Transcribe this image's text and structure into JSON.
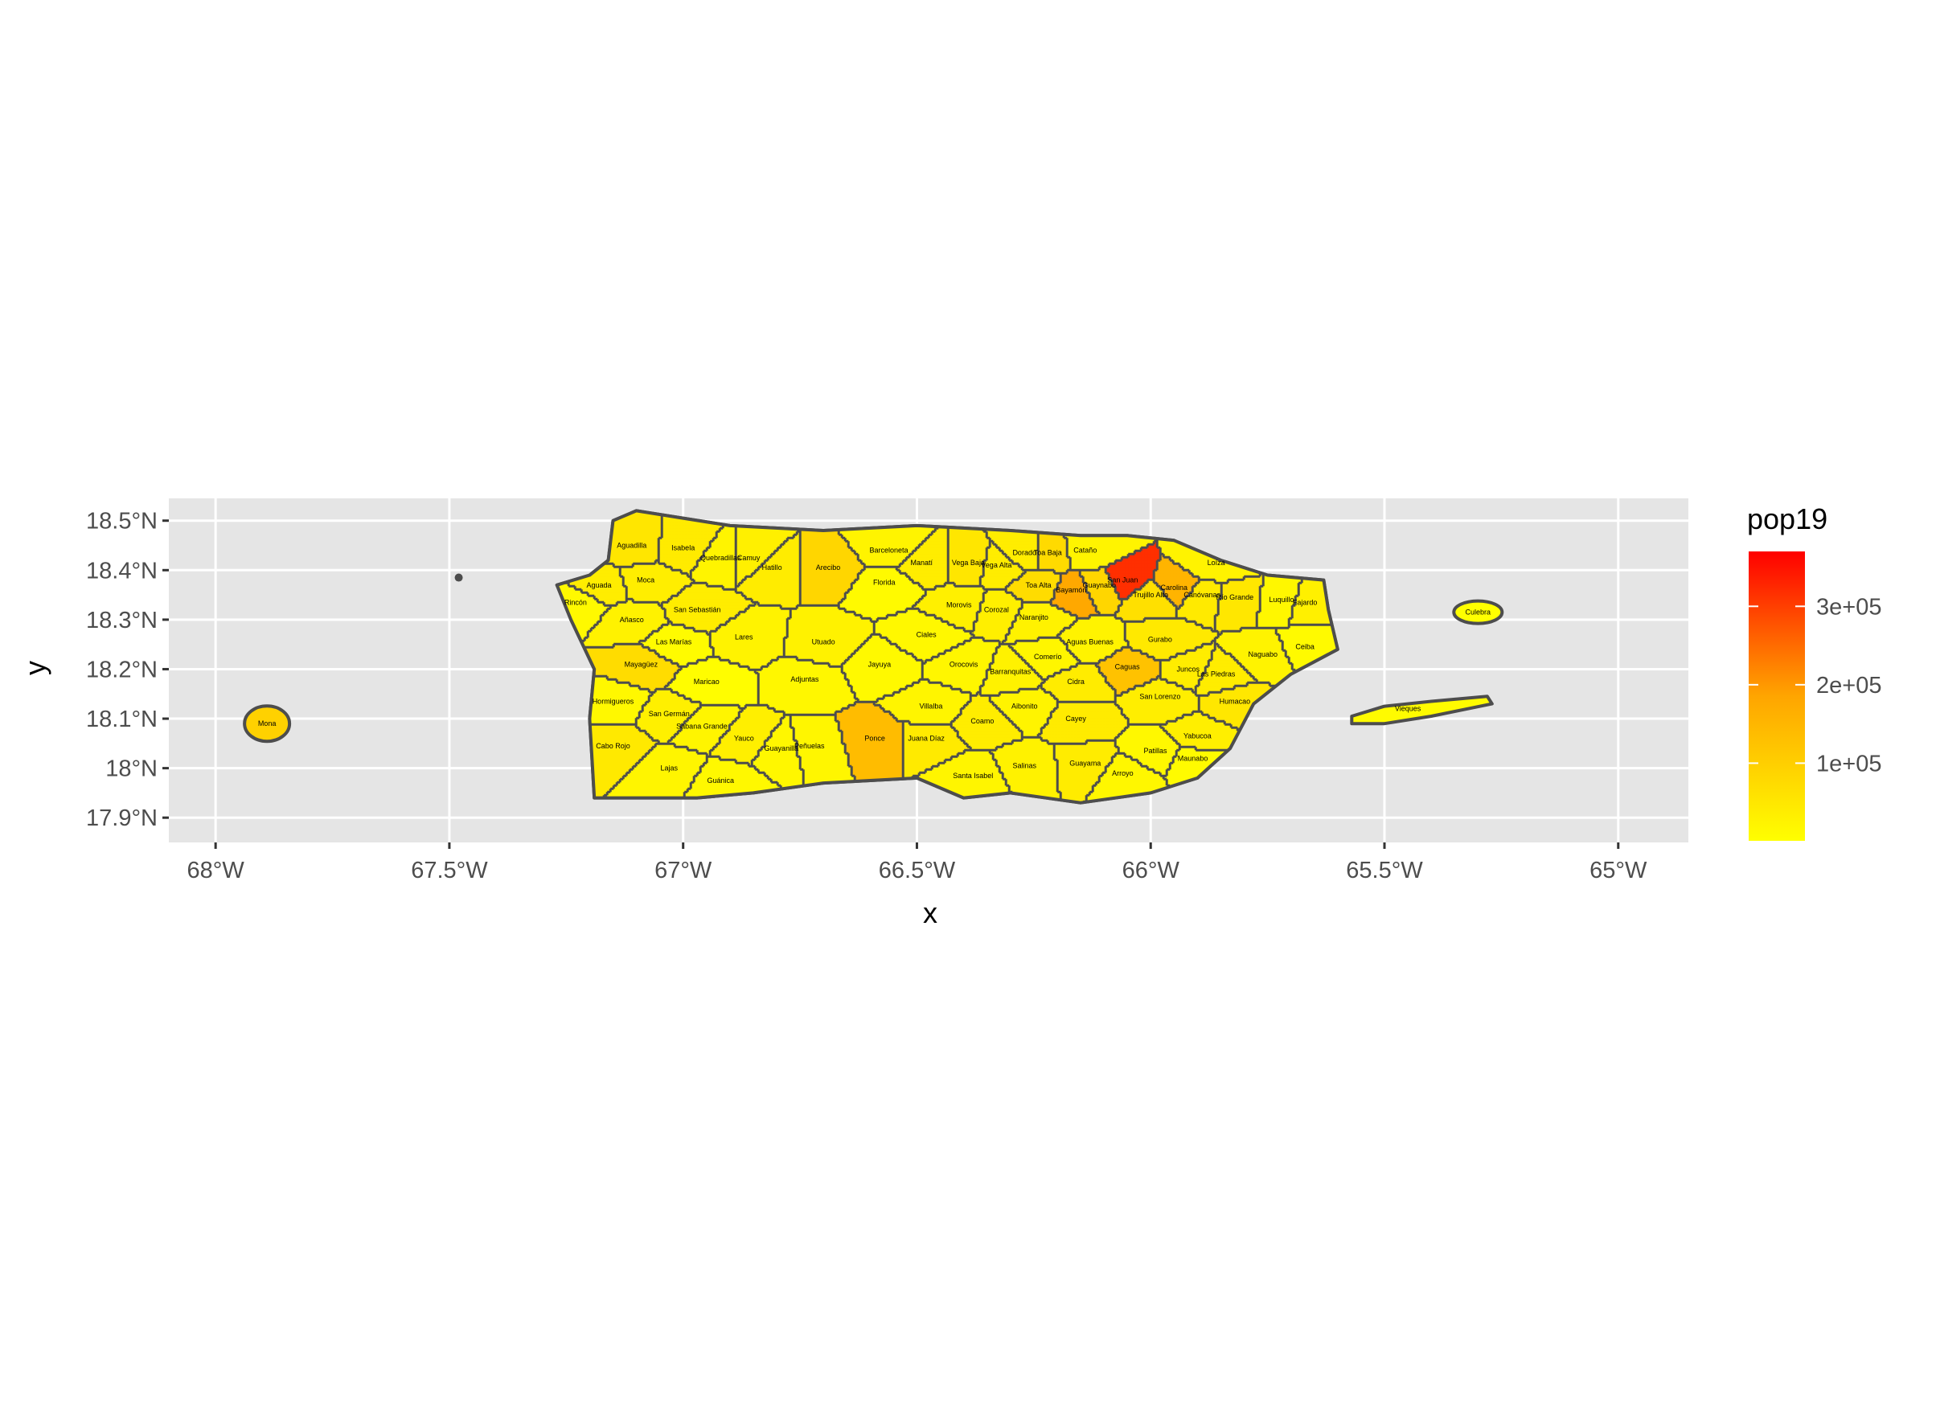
{
  "chart_data": {
    "type": "choropleth",
    "xlabel": "x",
    "ylabel": "y",
    "xlim": [
      -68.1,
      -64.85
    ],
    "ylim": [
      17.85,
      18.545
    ],
    "x_ticks": [
      {
        "value": -68,
        "label": "68°W"
      },
      {
        "value": -67.5,
        "label": "67.5°W"
      },
      {
        "value": -67,
        "label": "67°W"
      },
      {
        "value": -66.5,
        "label": "66.5°W"
      },
      {
        "value": -66,
        "label": "66°W"
      },
      {
        "value": -65.5,
        "label": "65.5°W"
      },
      {
        "value": -65,
        "label": "65°W"
      }
    ],
    "y_ticks": [
      {
        "value": 18.5,
        "label": "18.5°N"
      },
      {
        "value": 18.4,
        "label": "18.4°N"
      },
      {
        "value": 18.3,
        "label": "18.3°N"
      },
      {
        "value": 18.2,
        "label": "18.2°N"
      },
      {
        "value": 18.1,
        "label": "18.1°N"
      },
      {
        "value": 18.0,
        "label": "18°N"
      },
      {
        "value": 17.9,
        "label": "17.9°N"
      }
    ],
    "legend": {
      "title": "pop19",
      "placement": "right",
      "low_color": "#FFFF00",
      "high_color": "#FF0000",
      "min": 1000,
      "max": 370000,
      "ticks": [
        {
          "value": 100000,
          "label": "1e+05"
        },
        {
          "value": 200000,
          "label": "2e+05"
        },
        {
          "value": 300000,
          "label": "3e+05"
        }
      ]
    },
    "colors": {
      "panel_background": "#e5e5e5",
      "grid": "#ffffff",
      "border": "#4d4d4d"
    },
    "municipalities": [
      {
        "name": "Aguadilla",
        "lon": -67.11,
        "lat": 18.45,
        "pop19": 53000
      },
      {
        "name": "Isabela",
        "lon": -67.0,
        "lat": 18.445,
        "pop19": 42000
      },
      {
        "name": "Quebradillas",
        "lon": -66.92,
        "lat": 18.425,
        "pop19": 23000
      },
      {
        "name": "Camuy",
        "lon": -66.86,
        "lat": 18.425,
        "pop19": 31000
      },
      {
        "name": "Hatillo",
        "lon": -66.81,
        "lat": 18.405,
        "pop19": 40000
      },
      {
        "name": "Arecibo",
        "lon": -66.69,
        "lat": 18.405,
        "pop19": 86000
      },
      {
        "name": "Barceloneta",
        "lon": -66.56,
        "lat": 18.44,
        "pop19": 23000
      },
      {
        "name": "Florida",
        "lon": -66.57,
        "lat": 18.375,
        "pop19": 11000
      },
      {
        "name": "Manatí",
        "lon": -66.49,
        "lat": 18.415,
        "pop19": 38000
      },
      {
        "name": "Vega Baja",
        "lon": -66.39,
        "lat": 18.415,
        "pop19": 52000
      },
      {
        "name": "Vega Alta",
        "lon": -66.33,
        "lat": 18.41,
        "pop19": 37000
      },
      {
        "name": "Dorado",
        "lon": -66.27,
        "lat": 18.435,
        "pop19": 37000
      },
      {
        "name": "Toa Baja",
        "lon": -66.22,
        "lat": 18.435,
        "pop19": 77000
      },
      {
        "name": "Cataño",
        "lon": -66.14,
        "lat": 18.44,
        "pop19": 24000
      },
      {
        "name": "San Juan",
        "lon": -66.06,
        "lat": 18.38,
        "pop19": 318000
      },
      {
        "name": "Carolina",
        "lon": -65.95,
        "lat": 18.365,
        "pop19": 154000
      },
      {
        "name": "Loíza",
        "lon": -65.86,
        "lat": 18.415,
        "pop19": 25000
      },
      {
        "name": "Río Grande",
        "lon": -65.82,
        "lat": 18.345,
        "pop19": 50000
      },
      {
        "name": "Luquillo",
        "lon": -65.72,
        "lat": 18.34,
        "pop19": 18000
      },
      {
        "name": "Fajardo",
        "lon": -65.67,
        "lat": 18.335,
        "pop19": 31000
      },
      {
        "name": "Culebra",
        "lon": -65.3,
        "lat": 18.315,
        "pop19": 1700
      },
      {
        "name": "Vieques",
        "lon": -65.45,
        "lat": 18.12,
        "pop19": 8400
      },
      {
        "name": "Aguada",
        "lon": -67.18,
        "lat": 18.37,
        "pop19": 37000
      },
      {
        "name": "Rincón",
        "lon": -67.23,
        "lat": 18.335,
        "pop19": 14000
      },
      {
        "name": "Moca",
        "lon": -67.08,
        "lat": 18.38,
        "pop19": 36000
      },
      {
        "name": "San Sebastián",
        "lon": -66.97,
        "lat": 18.32,
        "pop19": 37000
      },
      {
        "name": "Añasco",
        "lon": -67.11,
        "lat": 18.3,
        "pop19": 27000
      },
      {
        "name": "Las Marías",
        "lon": -67.02,
        "lat": 18.255,
        "pop19": 8500
      },
      {
        "name": "Lares",
        "lon": -66.87,
        "lat": 18.265,
        "pop19": 25000
      },
      {
        "name": "Utuado",
        "lon": -66.7,
        "lat": 18.255,
        "pop19": 28000
      },
      {
        "name": "Ciales",
        "lon": -66.48,
        "lat": 18.27,
        "pop19": 16000
      },
      {
        "name": "Morovis",
        "lon": -66.41,
        "lat": 18.33,
        "pop19": 31000
      },
      {
        "name": "Corozal",
        "lon": -66.33,
        "lat": 18.32,
        "pop19": 33000
      },
      {
        "name": "Toa Alta",
        "lon": -66.24,
        "lat": 18.37,
        "pop19": 73000
      },
      {
        "name": "Naranjito",
        "lon": -66.25,
        "lat": 18.305,
        "pop19": 28000
      },
      {
        "name": "Bayamón",
        "lon": -66.17,
        "lat": 18.36,
        "pop19": 180000
      },
      {
        "name": "Guaynabo",
        "lon": -66.11,
        "lat": 18.37,
        "pop19": 86000
      },
      {
        "name": "Trujillo Alto",
        "lon": -66.0,
        "lat": 18.35,
        "pop19": 65000
      },
      {
        "name": "Canóvanas",
        "lon": -65.89,
        "lat": 18.35,
        "pop19": 44000
      },
      {
        "name": "Mayagüez",
        "lon": -67.09,
        "lat": 18.21,
        "pop19": 72000
      },
      {
        "name": "Maricao",
        "lon": -66.95,
        "lat": 18.175,
        "pop19": 5400
      },
      {
        "name": "Adjuntas",
        "lon": -66.74,
        "lat": 18.18,
        "pop19": 17000
      },
      {
        "name": "Jayuya",
        "lon": -66.58,
        "lat": 18.21,
        "pop19": 14000
      },
      {
        "name": "Orocovis",
        "lon": -66.4,
        "lat": 18.21,
        "pop19": 20000
      },
      {
        "name": "Barranquitas",
        "lon": -66.3,
        "lat": 18.195,
        "pop19": 28000
      },
      {
        "name": "Comerío",
        "lon": -66.22,
        "lat": 18.225,
        "pop19": 19000
      },
      {
        "name": "Aguas Buenas",
        "lon": -66.13,
        "lat": 18.255,
        "pop19": 25000
      },
      {
        "name": "Cidra",
        "lon": -66.16,
        "lat": 18.175,
        "pop19": 39000
      },
      {
        "name": "Caguas",
        "lon": -66.05,
        "lat": 18.205,
        "pop19": 127000
      },
      {
        "name": "Gurabo",
        "lon": -65.98,
        "lat": 18.26,
        "pop19": 47000
      },
      {
        "name": "Juncos",
        "lon": -65.92,
        "lat": 18.2,
        "pop19": 38000
      },
      {
        "name": "Las Piedras",
        "lon": -65.86,
        "lat": 18.19,
        "pop19": 37000
      },
      {
        "name": "Naguabo",
        "lon": -65.76,
        "lat": 18.23,
        "pop19": 25000
      },
      {
        "name": "Ceiba",
        "lon": -65.67,
        "lat": 18.245,
        "pop19": 11000
      },
      {
        "name": "Humacao",
        "lon": -65.82,
        "lat": 18.135,
        "pop19": 51000
      },
      {
        "name": "San Lorenzo",
        "lon": -65.98,
        "lat": 18.145,
        "pop19": 36000
      },
      {
        "name": "Hormigueros",
        "lon": -67.15,
        "lat": 18.135,
        "pop19": 16000
      },
      {
        "name": "San Germán",
        "lon": -67.03,
        "lat": 18.11,
        "pop19": 31000
      },
      {
        "name": "Sabana Grande",
        "lon": -66.96,
        "lat": 18.085,
        "pop19": 22000
      },
      {
        "name": "Yauco",
        "lon": -66.87,
        "lat": 18.06,
        "pop19": 33000
      },
      {
        "name": "Guayanilla",
        "lon": -66.79,
        "lat": 18.04,
        "pop19": 18000
      },
      {
        "name": "Peñuelas",
        "lon": -66.73,
        "lat": 18.045,
        "pop19": 19000
      },
      {
        "name": "Ponce",
        "lon": -66.59,
        "lat": 18.06,
        "pop19": 138000
      },
      {
        "name": "Juana Díaz",
        "lon": -66.48,
        "lat": 18.06,
        "pop19": 44000
      },
      {
        "name": "Villalba",
        "lon": -66.47,
        "lat": 18.125,
        "pop19": 22000
      },
      {
        "name": "Coamo",
        "lon": -66.36,
        "lat": 18.095,
        "pop19": 37000
      },
      {
        "name": "Aibonito",
        "lon": -66.27,
        "lat": 18.125,
        "pop19": 23000
      },
      {
        "name": "Cayey",
        "lon": -66.16,
        "lat": 18.1,
        "pop19": 42000
      },
      {
        "name": "Cabo Rojo",
        "lon": -67.15,
        "lat": 18.045,
        "pop19": 47000
      },
      {
        "name": "Lajas",
        "lon": -67.03,
        "lat": 18.0,
        "pop19": 22000
      },
      {
        "name": "Guánica",
        "lon": -66.92,
        "lat": 17.975,
        "pop19": 15000
      },
      {
        "name": "Santa Isabel",
        "lon": -66.38,
        "lat": 17.985,
        "pop19": 21000
      },
      {
        "name": "Salinas",
        "lon": -66.27,
        "lat": 18.005,
        "pop19": 27000
      },
      {
        "name": "Guayama",
        "lon": -66.14,
        "lat": 18.01,
        "pop19": 39000
      },
      {
        "name": "Arroyo",
        "lon": -66.06,
        "lat": 17.99,
        "pop19": 17000
      },
      {
        "name": "Patillas",
        "lon": -65.99,
        "lat": 18.035,
        "pop19": 16000
      },
      {
        "name": "Maunabo",
        "lon": -65.91,
        "lat": 18.02,
        "pop19": 10000
      },
      {
        "name": "Yabucoa",
        "lon": -65.9,
        "lat": 18.065,
        "pop19": 33000
      },
      {
        "name": "Mona",
        "lon": -67.89,
        "lat": 18.09,
        "pop19": 95000
      }
    ]
  }
}
